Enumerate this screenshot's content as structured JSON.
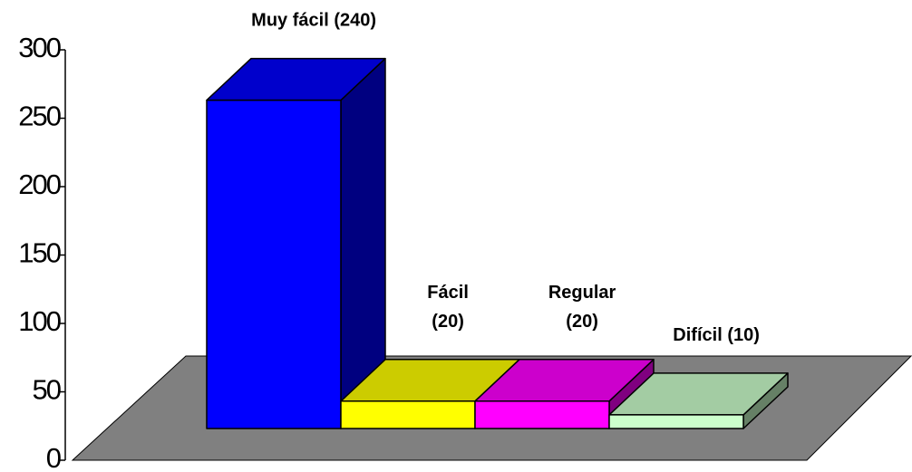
{
  "chart_data": {
    "type": "bar3d",
    "categories": [
      "Muy fácil",
      "Fácil",
      "Regular",
      "Difícil"
    ],
    "values": [
      240,
      20,
      20,
      10
    ],
    "value_labels": [
      "(240)",
      "(20)",
      "(20)",
      "(10)"
    ],
    "colors": [
      "#0000ff",
      "#ffff00",
      "#ff00ff",
      "#ccffcc"
    ],
    "ylim": [
      0,
      300
    ],
    "yticks": [
      0,
      50,
      100,
      150,
      200,
      250,
      300
    ]
  }
}
